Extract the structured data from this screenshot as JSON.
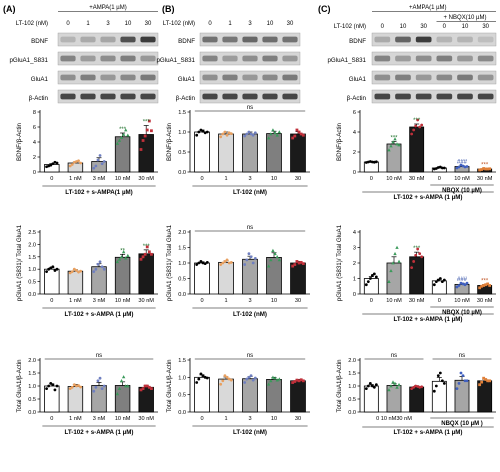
{
  "figure": {
    "panels": [
      {
        "id": "A",
        "label": "(A)",
        "treatment_label": "+AMPA(1 µM)",
        "dose_label": "LT-102 (nM)",
        "doses": [
          "0",
          "1",
          "3",
          "10",
          "30"
        ],
        "blot_rows": [
          "BDNF",
          "pGluA1_S831",
          "GluA1",
          "β-Actin"
        ],
        "charts": [
          {
            "type": "bar",
            "ylabel": "BDNF/β-Actin",
            "yticks": [
              "0",
              "2",
              "4",
              "6",
              "8"
            ],
            "ylim": [
              0,
              8
            ],
            "categories": [
              "0",
              "1 nM",
              "3 nM",
              "10 nM",
              "30 nM"
            ],
            "values": [
              1.0,
              1.2,
              1.4,
              4.7,
              5.0
            ],
            "errors": [
              0.12,
              0.15,
              0.5,
              0.5,
              1.2
            ],
            "points": [
              [
                0.7,
                0.8,
                0.9,
                1.1,
                1.3,
                1.2
              ],
              [
                0.8,
                1.0,
                1.3,
                1.4,
                1.5,
                1.2
              ],
              [
                0.5,
                0.8,
                1.6,
                2.2,
                1.1,
                1.4
              ],
              [
                3.8,
                4.2,
                4.6,
                5.0,
                5.6,
                4.9
              ],
              [
                3.0,
                4.2,
                4.8,
                5.6,
                6.8,
                5.5
              ]
            ],
            "significance": [
              "",
              "",
              "",
              "***",
              "***"
            ],
            "ns_label": "",
            "xlabel": "LT-102 + s-AMPA(1 µM)"
          },
          {
            "type": "bar",
            "ylabel": "pGluA1 (S831)/ Total GluA1",
            "yticks": [
              "0.0",
              "0.5",
              "1.0",
              "1.5",
              "2.0",
              "2.5"
            ],
            "ylim": [
              0,
              2.5
            ],
            "categories": [
              "0",
              "1 nM",
              "3 nM",
              "10 nM",
              "30 nM"
            ],
            "values": [
              1.0,
              0.92,
              1.1,
              1.48,
              1.62
            ],
            "errors": [
              0.06,
              0.06,
              0.12,
              0.12,
              0.16
            ],
            "points": [
              [
                0.9,
                1.0,
                1.05,
                1.1,
                0.95,
                1.0
              ],
              [
                0.85,
                0.9,
                1.0,
                0.95,
                0.88,
                0.92
              ],
              [
                0.9,
                1.0,
                1.2,
                1.3,
                1.1,
                1.0
              ],
              [
                1.3,
                1.4,
                1.5,
                1.7,
                1.45,
                1.55
              ],
              [
                1.4,
                1.5,
                1.6,
                1.9,
                1.7,
                1.6
              ]
            ],
            "significance": [
              "",
              "",
              "",
              "**",
              "***"
            ],
            "ns_label": "",
            "xlabel": "LT-102 + s-AMPA (1 µM)"
          },
          {
            "type": "bar",
            "ylabel": "Total GluA1/β-Actin",
            "yticks": [
              "0.0",
              "0.5",
              "1.0",
              "1.5",
              "2.0"
            ],
            "ylim": [
              0,
              2
            ],
            "categories": [
              "0",
              "1 nM",
              "3 nM",
              "10 nM",
              "30 nM"
            ],
            "values": [
              1.0,
              0.98,
              1.02,
              1.02,
              0.95
            ],
            "errors": [
              0.08,
              0.08,
              0.12,
              0.14,
              0.07
            ],
            "points": [
              [
                0.9,
                1.0,
                1.1,
                1.05,
                0.85,
                1.0
              ],
              [
                0.9,
                0.95,
                1.05,
                1.0,
                1.02,
                0.96
              ],
              [
                0.8,
                0.95,
                1.2,
                1.3,
                0.9,
                1.0
              ],
              [
                0.7,
                0.9,
                1.2,
                1.35,
                1.0,
                1.0
              ],
              [
                0.85,
                0.9,
                1.0,
                1.0,
                0.95,
                0.9
              ]
            ],
            "significance": [
              "",
              "",
              "",
              "",
              ""
            ],
            "ns_label": "ns",
            "xlabel": "LT-102 + s-AMPA (1 µM)"
          }
        ]
      },
      {
        "id": "B",
        "label": "(B)",
        "treatment_label": "",
        "dose_label": "LT-102 (nM)",
        "doses": [
          "0",
          "1",
          "3",
          "10",
          "30"
        ],
        "blot_rows": [
          "BDNF",
          "pGluA1_S831",
          "GluA1",
          "β-Actin"
        ],
        "charts": [
          {
            "type": "bar",
            "ylabel": "BDNF/β-Actin",
            "yticks": [
              "0.0",
              "0.5",
              "1.0",
              "1.5"
            ],
            "ylim": [
              0,
              1.5
            ],
            "categories": [
              "0",
              "1",
              "3",
              "10",
              "30"
            ],
            "values": [
              1.0,
              0.95,
              0.95,
              0.96,
              0.95
            ],
            "errors": [
              0.05,
              0.05,
              0.05,
              0.06,
              0.06
            ],
            "points": [
              [
                0.92,
                1.0,
                1.05,
                1.02,
                0.98,
                1.0
              ],
              [
                0.88,
                0.95,
                1.0,
                0.92,
                0.98,
                0.96
              ],
              [
                0.9,
                0.95,
                1.0,
                0.95,
                0.92,
                0.98
              ],
              [
                0.85,
                0.95,
                1.05,
                0.98,
                0.92,
                1.0
              ],
              [
                0.85,
                0.9,
                1.05,
                1.0,
                0.95,
                0.92
              ]
            ],
            "significance": [
              "",
              "",
              "",
              "",
              ""
            ],
            "ns_label": "ns",
            "xlabel": "LT-102 (nM)"
          },
          {
            "type": "bar",
            "ylabel": "pGluA1 (S831)/ Total GluA1",
            "yticks": [
              "0.0",
              "0.5",
              "1.0",
              "1.5",
              "2.0"
            ],
            "ylim": [
              0,
              2
            ],
            "categories": [
              "0",
              "1",
              "3",
              "10",
              "30"
            ],
            "values": [
              1.0,
              1.02,
              1.12,
              1.18,
              1.0
            ],
            "errors": [
              0.04,
              0.05,
              0.1,
              0.15,
              0.05
            ],
            "points": [
              [
                0.95,
                1.0,
                1.05,
                1.0,
                0.98,
                1.02
              ],
              [
                0.95,
                1.0,
                1.05,
                1.1,
                1.0,
                1.02
              ],
              [
                0.95,
                1.1,
                1.3,
                1.2,
                1.0,
                1.15
              ],
              [
                0.9,
                1.1,
                1.4,
                1.3,
                1.2,
                1.1
              ],
              [
                0.9,
                0.95,
                1.05,
                1.0,
                1.02,
                0.98
              ]
            ],
            "significance": [
              "",
              "",
              "",
              "",
              ""
            ],
            "ns_label": "ns",
            "xlabel": "LT-102 (nM)"
          },
          {
            "type": "bar",
            "ylabel": "Total GluA1/β-Actin",
            "yticks": [
              "0.0",
              "0.5",
              "1.0",
              "1.5"
            ],
            "ylim": [
              0,
              1.5
            ],
            "categories": [
              "0",
              "1",
              "3",
              "10",
              "30"
            ],
            "values": [
              1.0,
              0.95,
              0.96,
              0.94,
              0.9
            ],
            "errors": [
              0.07,
              0.06,
              0.06,
              0.06,
              0.04
            ],
            "points": [
              [
                0.85,
                0.95,
                1.1,
                1.05,
                1.0,
                0.98
              ],
              [
                0.8,
                0.9,
                1.05,
                1.0,
                0.95,
                0.92
              ],
              [
                0.85,
                0.95,
                1.0,
                1.05,
                0.92,
                0.98
              ],
              [
                0.8,
                0.9,
                1.0,
                0.98,
                0.92,
                0.95
              ],
              [
                0.85,
                0.88,
                0.92,
                0.9,
                0.93,
                0.9
              ]
            ],
            "significance": [
              "",
              "",
              "",
              "",
              ""
            ],
            "ns_label": "ns",
            "xlabel": "LT-102 (nM)"
          }
        ]
      },
      {
        "id": "C",
        "label": "(C)",
        "treatment_label": "+AMPA(1 µM)",
        "nbqx_label": "+ NBQX(10 µM)",
        "dose_label": "LT-102 (nM)",
        "doses": [
          "0",
          "10",
          "30",
          "0",
          "10",
          "30"
        ],
        "blot_rows": [
          "BDNF",
          "pGluA1_S831",
          "GluA1",
          "β-Actin"
        ],
        "charts": [
          {
            "type": "bar",
            "ylabel": "BDNF/β-Actin",
            "yticks": [
              "0",
              "2",
              "4",
              "6"
            ],
            "ylim": [
              0,
              6
            ],
            "categories": [
              "0",
              "10 nM",
              "30 nM",
              "0",
              "10 nM",
              "30 nM"
            ],
            "values": [
              1.0,
              2.8,
              4.5,
              0.4,
              0.55,
              0.3
            ],
            "errors": [
              0.05,
              0.25,
              0.3,
              0.08,
              0.1,
              0.06
            ],
            "points": [
              [
                0.95,
                1.0,
                1.05,
                1.0,
                0.98,
                1.02
              ],
              [
                2.2,
                2.6,
                3.0,
                3.3,
                2.8,
                2.7
              ],
              [
                3.8,
                4.2,
                4.6,
                5.2,
                4.5,
                4.7
              ],
              [
                0.3,
                0.35,
                0.45,
                0.5,
                0.4,
                0.4
              ],
              [
                0.4,
                0.5,
                0.7,
                0.6,
                0.5,
                0.55
              ],
              [
                0.2,
                0.25,
                0.35,
                0.3,
                0.3,
                0.32
              ]
            ],
            "significance": [
              "",
              "***",
              "***",
              "",
              "###",
              "***"
            ],
            "ns_label": "",
            "nbqx_group_label": "NBQX (10 µM)",
            "xlabel": "LT-102 + s-AMPA (1 µM)"
          },
          {
            "type": "bar",
            "ylabel": "pGluA1 (S831)/ Total GluA1",
            "yticks": [
              "0",
              "1",
              "2",
              "3",
              "4"
            ],
            "ylim": [
              0,
              4
            ],
            "categories": [
              "0",
              "10 nM",
              "30 nM",
              "0",
              "10 nM",
              "30 nM"
            ],
            "values": [
              1.0,
              2.0,
              2.4,
              0.85,
              0.62,
              0.55
            ],
            "errors": [
              0.12,
              0.4,
              0.3,
              0.1,
              0.08,
              0.06
            ],
            "points": [
              [
                0.6,
                0.8,
                1.0,
                1.2,
                1.3,
                1.1
              ],
              [
                0.8,
                1.5,
                2.0,
                2.6,
                3.0,
                2.1
              ],
              [
                1.7,
                2.1,
                2.5,
                2.9,
                2.6,
                2.4
              ],
              [
                0.6,
                0.8,
                0.9,
                1.0,
                0.8,
                0.9
              ],
              [
                0.45,
                0.55,
                0.7,
                0.65,
                0.6,
                0.7
              ],
              [
                0.4,
                0.5,
                0.55,
                0.6,
                0.65,
                0.55
              ]
            ],
            "significance": [
              "",
              "",
              "***",
              "",
              "###",
              "***"
            ],
            "ns_label": "",
            "nbqx_group_label": "NBQX (10 µM)",
            "xlabel": "LT-102 + s-AMPA (1 µM)"
          },
          {
            "type": "bar",
            "ylabel": "Total GluA1/β-Actin",
            "yticks": [
              "0.0",
              "0.5",
              "1.0",
              "1.5",
              "2.0"
            ],
            "ylim": [
              0,
              2
            ],
            "categories": [
              "0",
              "10 nM",
              "30 nM",
              "0",
              "10 nM",
              "30 nM"
            ],
            "values": [
              1.0,
              1.02,
              0.96,
              1.18,
              1.22,
              1.2
            ],
            "errors": [
              0.06,
              0.08,
              0.05,
              0.15,
              0.14,
              0.06
            ],
            "points": [
              [
                0.9,
                1.0,
                1.1,
                1.0,
                0.95,
                1.05
              ],
              [
                0.85,
                1.0,
                1.15,
                1.1,
                0.95,
                1.05
              ],
              [
                0.9,
                0.95,
                1.0,
                0.98,
                0.95,
                0.97
              ],
              [
                0.8,
                1.0,
                1.4,
                1.5,
                1.2,
                1.1
              ],
              [
                0.9,
                1.1,
                1.5,
                1.4,
                1.2,
                1.2
              ],
              [
                1.05,
                1.15,
                1.3,
                1.25,
                1.2,
                1.2
              ]
            ],
            "significance": [
              "",
              "",
              "",
              "",
              "",
              ""
            ],
            "ns_labels": [
              "ns",
              "ns"
            ],
            "nbqx_group_label": "NBQX (10 µM )",
            "xtick_bottom": "0   10 nM30 nM",
            "xlabel": "LT-102 + s-AMPA (1 µM)"
          }
        ]
      }
    ],
    "colors": {
      "bar_0": "#ffffff",
      "bar_1": "#d9d9d9",
      "bar_2": "#a6a6a6",
      "bar_3": "#7f7f7f",
      "bar_4": "#1a1a1a",
      "dot_0": "#000000",
      "dot_1": "#e8a060",
      "dot_2": "#6f7fc0",
      "dot_3": "#3a9a5a",
      "dot_4": "#c0303a",
      "c_dot_nbqx": "#4060c0",
      "c_dot_nbqx30": "#e0803a",
      "sig_nbqx": "#2040a0"
    }
  }
}
